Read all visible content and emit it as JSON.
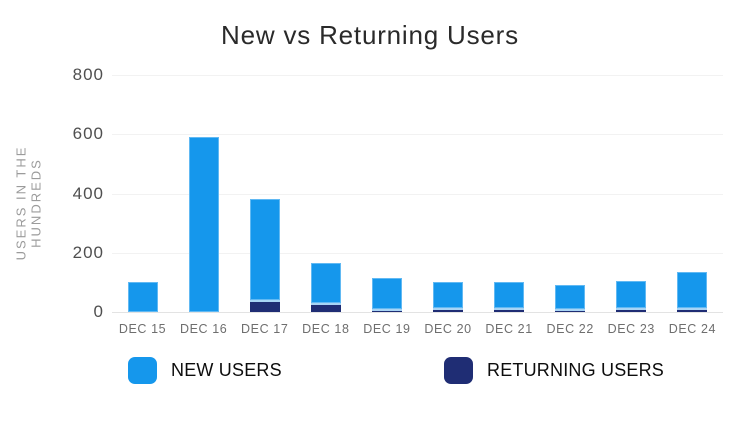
{
  "chart_title": "New vs Returning Users",
  "colors": {
    "new_users": "#1597EC",
    "returning_users": "#1F2D74",
    "gridline": "#F2F2F2",
    "baseline": "#E3E3E3",
    "title_text": "#2A2A2A",
    "y_tick_text": "#4F4F4F",
    "x_tick_text": "#6E6E6E",
    "axis_label_text": "#9B9B9B",
    "legend_text": "#0D0D0D"
  },
  "chart_data": {
    "type": "bar",
    "stacked": true,
    "title": "New vs Returning Users",
    "xlabel": "",
    "ylabel": "USERS IN THE HUNDREDS",
    "ylabel_lines": [
      "USERS IN THE",
      "HUNDREDS"
    ],
    "ylim": [
      0,
      800
    ],
    "yticks": [
      800,
      600,
      400,
      200,
      0
    ],
    "grid": "horizontal",
    "legend_position": "bottom",
    "categories": [
      "DEC 15",
      "DEC 16",
      "DEC 17",
      "DEC 18",
      "DEC 19",
      "DEC 20",
      "DEC 21",
      "DEC 22",
      "DEC 23",
      "DEC 24"
    ],
    "series": [
      {
        "name": "NEW USERS",
        "color": "#1597EC",
        "stack_position": "top",
        "values": [
          100,
          590,
          340,
          135,
          105,
          85,
          88,
          80,
          90,
          123
        ]
      },
      {
        "name": "RETURNING USERS",
        "color": "#1F2D74",
        "stack_position": "bottom",
        "values": [
          0,
          0,
          40,
          30,
          10,
          15,
          12,
          10,
          15,
          12
        ]
      }
    ],
    "totals": [
      100,
      590,
      380,
      165,
      115,
      100,
      100,
      90,
      105,
      135
    ]
  },
  "legend": {
    "items": [
      {
        "label": "NEW USERS",
        "color": "#1597EC"
      },
      {
        "label": "RETURNING USERS",
        "color": "#1F2D74"
      }
    ]
  }
}
